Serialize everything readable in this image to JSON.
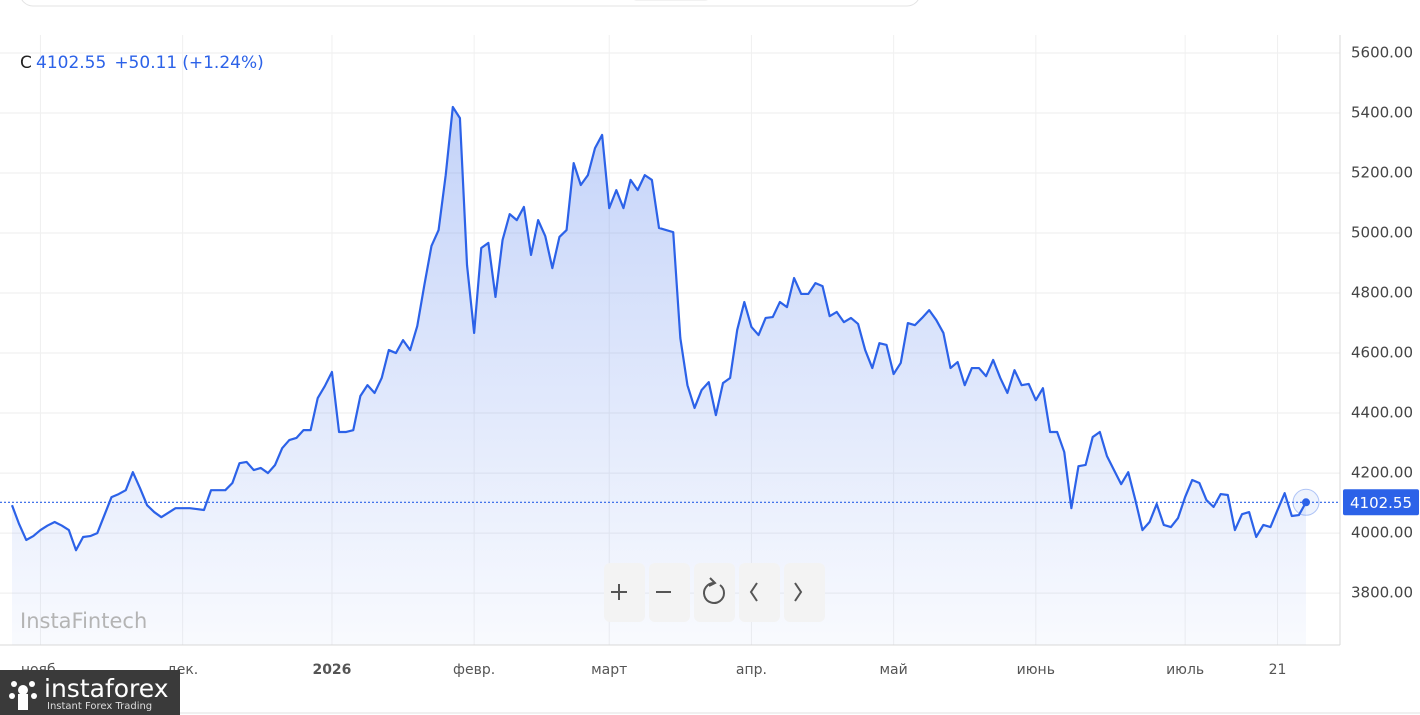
{
  "header": {
    "symbol": "C",
    "change": "+50.11",
    "change_pct": "(+1.24%)"
  },
  "watermark": "InstaFintech",
  "brand": {
    "name": "instaforex",
    "tagline": "Instant Forex Trading"
  },
  "chart_data": {
    "type": "area",
    "color": "#2c62e8",
    "categories": [
      null,
      null,
      null,
      null,
      "нояб.",
      null,
      null,
      null,
      null,
      null,
      null,
      null,
      null,
      null,
      null,
      null,
      null,
      null,
      null,
      null,
      null,
      null,
      null,
      null,
      "дек.",
      null,
      null,
      null,
      null,
      null,
      null,
      null,
      null,
      null,
      null,
      null,
      null,
      null,
      null,
      null,
      null,
      null,
      null,
      null,
      null,
      "2026",
      null,
      null,
      null,
      null,
      null,
      null,
      null,
      null,
      null,
      null,
      null,
      null,
      null,
      null,
      null,
      null,
      null,
      null,
      null,
      "февр.",
      null,
      null,
      null,
      null,
      null,
      null,
      null,
      null,
      null,
      null,
      null,
      null,
      null,
      null,
      null,
      null,
      null,
      null,
      "март",
      null,
      null,
      null,
      null,
      null,
      null,
      null,
      null,
      null,
      null,
      null,
      null,
      null,
      null,
      null,
      null,
      null,
      null,
      null,
      "апр.",
      null,
      null,
      null,
      null,
      null,
      null,
      null,
      null,
      null,
      null,
      null,
      null,
      null,
      null,
      null,
      null,
      null,
      null,
      null,
      "май",
      null,
      null,
      null,
      null,
      null,
      null,
      null,
      null,
      null,
      null,
      null,
      null,
      null,
      null,
      null,
      null,
      null,
      null,
      null,
      "июнь",
      null,
      null,
      null,
      null,
      null,
      null,
      null,
      null,
      null,
      null,
      null,
      null,
      null,
      null,
      null,
      null,
      null,
      null,
      null,
      null,
      "июль",
      null,
      null,
      null,
      null,
      null,
      null,
      null,
      null,
      null,
      null,
      null,
      null,
      "21",
      null,
      null,
      null,
      null
    ],
    "values": [
      4093,
      4030,
      3977,
      3990,
      4010,
      4025,
      4037,
      4025,
      4010,
      3943,
      3987,
      3990,
      4000,
      4060,
      4120,
      4130,
      4143,
      4203,
      4150,
      4093,
      4070,
      4053,
      4068,
      4083,
      4083,
      4083,
      4080,
      4077,
      4143,
      4143,
      4143,
      4167,
      4233,
      4237,
      4210,
      4217,
      4200,
      4227,
      4283,
      4310,
      4317,
      4343,
      4343,
      4450,
      4490,
      4537,
      4337,
      4337,
      4343,
      4457,
      4493,
      4467,
      4517,
      4610,
      4600,
      4643,
      4610,
      4690,
      4827,
      4957,
      5010,
      5193,
      5420,
      5383,
      4893,
      4667,
      4950,
      4967,
      4787,
      4977,
      5063,
      5043,
      5087,
      4927,
      5043,
      4990,
      4883,
      4987,
      5010,
      5233,
      5160,
      5193,
      5283,
      5327,
      5083,
      5143,
      5083,
      5177,
      5143,
      5193,
      5177,
      5017,
      5010,
      5003,
      4650,
      4493,
      4417,
      4477,
      4503,
      4393,
      4500,
      4517,
      4677,
      4770,
      4687,
      4660,
      4717,
      4720,
      4770,
      4753,
      4850,
      4797,
      4797,
      4833,
      4823,
      4723,
      4737,
      4703,
      4717,
      4697,
      4610,
      4550,
      4633,
      4627,
      4530,
      4567,
      4700,
      4693,
      4717,
      4743,
      4710,
      4667,
      4550,
      4570,
      4493,
      4550,
      4550,
      4523,
      4577,
      4517,
      4467,
      4543,
      4493,
      4497,
      4443,
      4483,
      4337,
      4337,
      4270,
      4083,
      4223,
      4227,
      4320,
      4337,
      4257,
      4210,
      4163,
      4203,
      4110,
      4010,
      4037,
      4097,
      4027,
      4020,
      4050,
      4120,
      4177,
      4167,
      4110,
      4087,
      4130,
      4127,
      4010,
      4063,
      4070,
      3987,
      4027,
      4020,
      4077,
      4133,
      4057,
      4060,
      4102.55
    ],
    "ylim": [
      3627,
      5660
    ],
    "yticks": [
      {
        "value": 3800,
        "label": "3800.00"
      },
      {
        "value": 4000,
        "label": "4000.00"
      },
      {
        "value": 4200,
        "label": "4200.00"
      },
      {
        "value": 4400,
        "label": "4400.00"
      },
      {
        "value": 4600,
        "label": "4600.00"
      },
      {
        "value": 4800,
        "label": "4800.00"
      },
      {
        "value": 5000,
        "label": "5000.00"
      },
      {
        "value": 5200,
        "label": "5200.00"
      },
      {
        "value": 5400,
        "label": "5400.00"
      },
      {
        "value": 5600,
        "label": "5600.00"
      }
    ],
    "grid": true
  }
}
